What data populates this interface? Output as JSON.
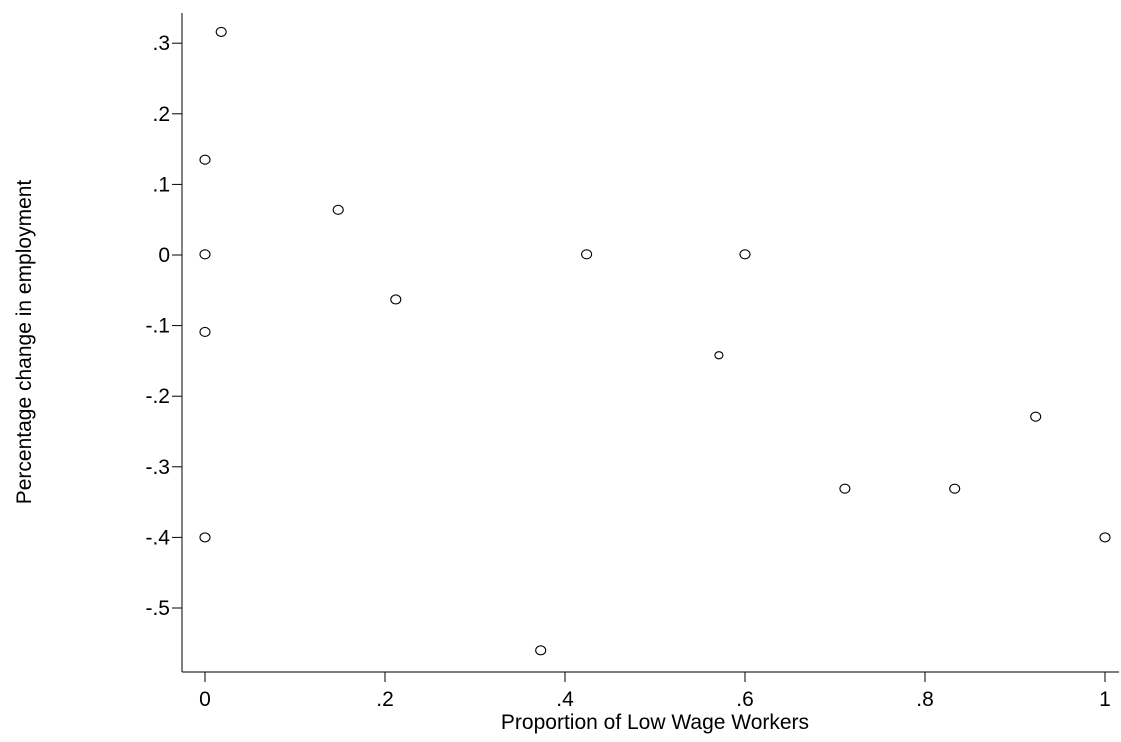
{
  "chart_data": {
    "type": "scatter",
    "xlabel": "Proportion of Low Wage Workers",
    "ylabel": "Percentage change in employment",
    "xlim": [
      -0.03,
      1.02
    ],
    "ylim": [
      -0.59,
      0.34
    ],
    "x_ticks": [
      {
        "value": 0,
        "label": "0"
      },
      {
        "value": 0.2,
        "label": ".2"
      },
      {
        "value": 0.4,
        "label": ".4"
      },
      {
        "value": 0.6,
        "label": ".6"
      },
      {
        "value": 0.8,
        "label": ".8"
      },
      {
        "value": 1,
        "label": "1"
      }
    ],
    "y_ticks": [
      {
        "value": 0.3,
        "label": ".3"
      },
      {
        "value": 0.2,
        "label": ".2"
      },
      {
        "value": 0.1,
        "label": ".1"
      },
      {
        "value": 0,
        "label": "0"
      },
      {
        "value": -0.1,
        "label": "-.1"
      },
      {
        "value": -0.2,
        "label": "-.2"
      },
      {
        "value": -0.3,
        "label": "-.3"
      },
      {
        "value": -0.4,
        "label": "-.4"
      },
      {
        "value": -0.5,
        "label": "-.5"
      }
    ],
    "grid": false,
    "marker": "hollow-circle",
    "series": [
      {
        "points": [
          {
            "x": 0.018,
            "y": 0.316
          },
          {
            "x": 0.0,
            "y": 0.135
          },
          {
            "x": 0.0,
            "y": 0.001
          },
          {
            "x": 0.0,
            "y": -0.109
          },
          {
            "x": 0.0,
            "y": -0.4
          },
          {
            "x": 0.148,
            "y": 0.064
          },
          {
            "x": 0.212,
            "y": -0.063
          },
          {
            "x": 0.373,
            "y": -0.56
          },
          {
            "x": 0.424,
            "y": 0.001
          },
          {
            "x": 0.571,
            "y": -0.142,
            "small": true
          },
          {
            "x": 0.6,
            "y": 0.001
          },
          {
            "x": 0.711,
            "y": -0.331
          },
          {
            "x": 0.833,
            "y": -0.331
          },
          {
            "x": 0.923,
            "y": -0.229
          },
          {
            "x": 1.0,
            "y": -0.4
          }
        ]
      }
    ]
  }
}
